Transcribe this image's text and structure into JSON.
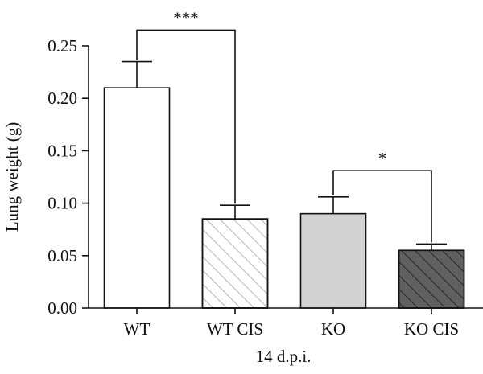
{
  "chart_data": {
    "type": "bar",
    "categories": [
      "WT",
      "WT CIS",
      "KO",
      "KO CIS"
    ],
    "values": [
      0.21,
      0.085,
      0.09,
      0.055
    ],
    "errors": [
      0.025,
      0.013,
      0.016,
      0.006
    ],
    "fills": [
      {
        "color": "#ffffff",
        "hatch": false,
        "hatch_color": ""
      },
      {
        "color": "#ffffff",
        "hatch": true,
        "hatch_color": "#9a9a9a"
      },
      {
        "color": "#d3d3d3",
        "hatch": false,
        "hatch_color": ""
      },
      {
        "color": "#606060",
        "hatch": true,
        "hatch_color": "#111111"
      }
    ],
    "title": "",
    "xlabel": "14 d.p.i.",
    "ylabel": "Lung weight (g)",
    "ylim": [
      0,
      0.25
    ],
    "yticks": [
      "0.00",
      "0.05",
      "0.10",
      "0.15",
      "0.20",
      "0.25"
    ],
    "grid": false,
    "legend": "none",
    "significance": [
      {
        "from": 0,
        "to": 1,
        "label": "***",
        "level": 0.265
      },
      {
        "from": 2,
        "to": 3,
        "label": "*",
        "level": 0.131
      }
    ]
  }
}
